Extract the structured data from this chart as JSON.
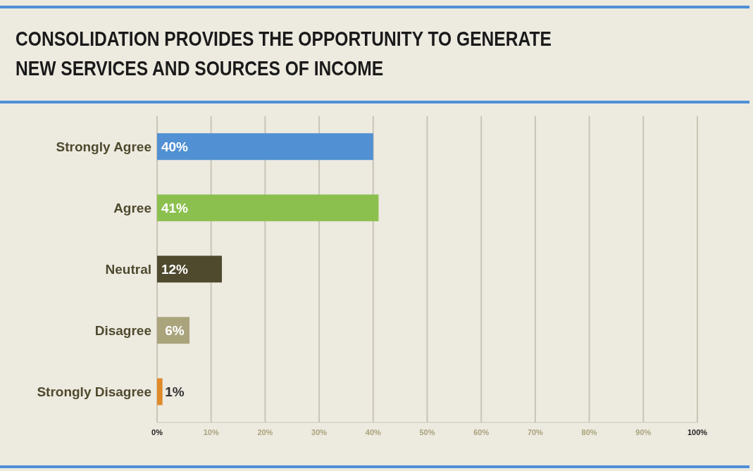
{
  "chart_data": {
    "type": "bar",
    "orientation": "horizontal",
    "title": "CONSOLIDATION PROVIDES THE OPPORTUNITY TO GENERATE NEW SERVICES AND SOURCES OF INCOME",
    "categories": [
      "Strongly Agree",
      "Agree",
      "Neutral",
      "Disagree",
      "Strongly Disagree"
    ],
    "values": [
      40,
      41,
      12,
      6,
      1
    ],
    "colors": [
      "#5090d3",
      "#8bc04f",
      "#4f4a2e",
      "#a9a47c",
      "#e08a2a"
    ],
    "value_labels": [
      "40%",
      "41%",
      "12%",
      "6%",
      "1%"
    ],
    "xlim": [
      0,
      100
    ],
    "xticks": [
      {
        "value": 0,
        "label": "0%"
      },
      {
        "value": 10,
        "label": "10%"
      },
      {
        "value": 20,
        "label": "20%"
      },
      {
        "value": 30,
        "label": "30%"
      },
      {
        "value": 40,
        "label": "40%"
      },
      {
        "value": 50,
        "label": "50%"
      },
      {
        "value": 60,
        "label": "60%"
      },
      {
        "value": 70,
        "label": "70%"
      },
      {
        "value": 80,
        "label": "80%"
      },
      {
        "value": 90,
        "label": "90%"
      },
      {
        "value": 100,
        "label": "100%"
      }
    ],
    "grid": "x"
  }
}
